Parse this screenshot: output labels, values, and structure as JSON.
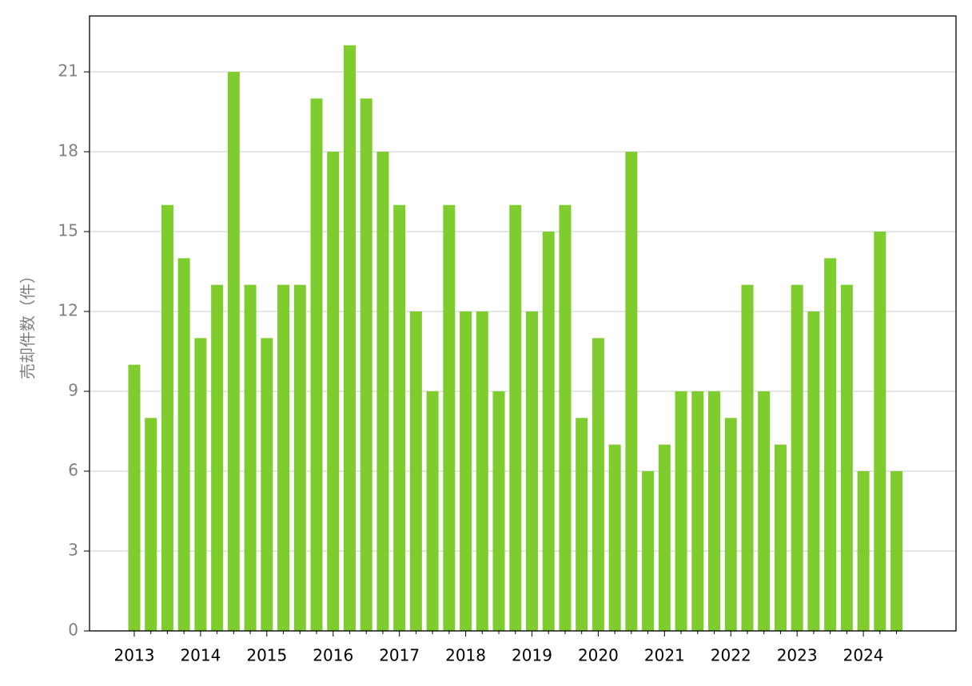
{
  "chart_data": {
    "type": "bar",
    "ylabel": "売却件数（件）",
    "categories": [
      "2013",
      null,
      null,
      null,
      "2014",
      null,
      null,
      null,
      "2015",
      null,
      null,
      null,
      "2016",
      null,
      null,
      null,
      "2017",
      null,
      null,
      null,
      "2018",
      null,
      null,
      null,
      "2019",
      null,
      null,
      null,
      "2020",
      null,
      null,
      null,
      "2021",
      null,
      null,
      null,
      "2022",
      null,
      null,
      null,
      "2023",
      null,
      null,
      null,
      "2024",
      null,
      null
    ],
    "values": [
      10,
      8,
      16,
      14,
      11,
      13,
      21,
      13,
      11,
      13,
      13,
      20,
      18,
      22,
      20,
      18,
      16,
      12,
      9,
      16,
      12,
      12,
      9,
      16,
      12,
      15,
      16,
      8,
      11,
      7,
      18,
      6,
      7,
      9,
      9,
      9,
      8,
      13,
      9,
      7,
      13,
      12,
      14,
      13,
      6,
      15,
      6
    ],
    "color": "#7fcc2f",
    "ylim": [
      0,
      23.1
    ],
    "yticks": [
      0,
      3,
      6,
      9,
      12,
      15,
      18,
      21
    ],
    "grid": true
  }
}
